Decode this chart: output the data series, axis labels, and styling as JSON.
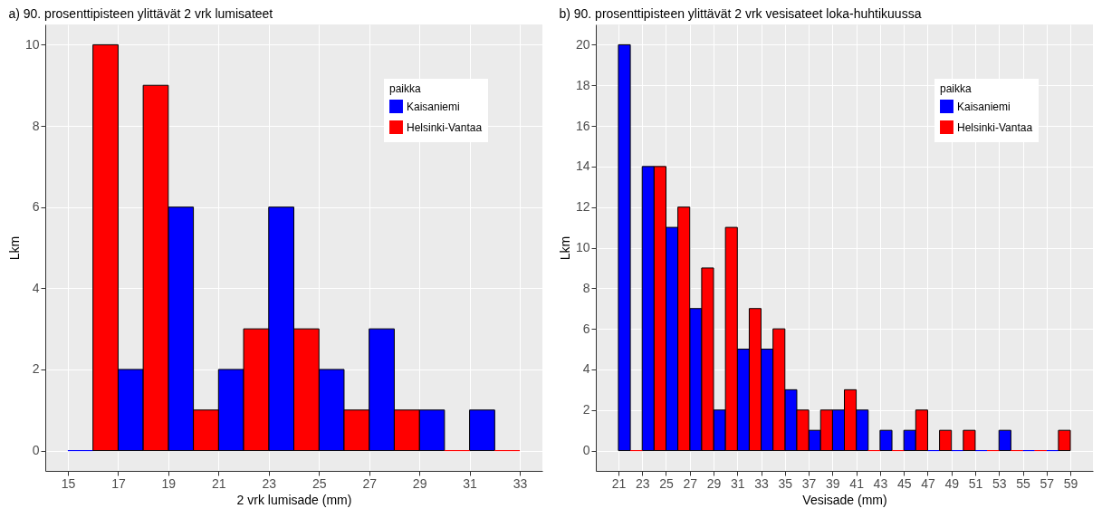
{
  "chart_data": [
    {
      "type": "histogram",
      "title": "a) 90. prosenttipisteen ylittävät 2 vrk lumisateet",
      "xlabel": "2 vrk lumisade (mm)",
      "ylabel": "Lkm",
      "legend_title": "paikka",
      "bins": [
        15,
        17,
        19,
        21,
        23,
        25,
        27,
        29,
        31,
        33
      ],
      "series": [
        {
          "name": "Kaisaniemi",
          "color": "#0000ff",
          "values": [
            0,
            2,
            6,
            2,
            6,
            2,
            3,
            1,
            1
          ]
        },
        {
          "name": "Helsinki-Vantaa",
          "color": "#ff0000",
          "values": [
            10,
            9,
            1,
            3,
            3,
            1,
            1,
            0,
            0
          ]
        }
      ],
      "xlim": [
        14.1,
        33.9
      ],
      "xticks": [
        15,
        17,
        19,
        21,
        23,
        25,
        27,
        29,
        31,
        33
      ],
      "ylim": [
        -0.5,
        10.5
      ],
      "yticks": [
        0,
        2,
        4,
        6,
        8,
        10
      ],
      "grid": true,
      "legend": "top right"
    },
    {
      "type": "histogram",
      "title": "b) 90. prosenttipisteen ylittävät 2 vrk vesisateet loka-huhtikuussa",
      "xlabel": "Vesisade (mm)",
      "ylabel": "Lkm",
      "legend_title": "paikka",
      "bins": [
        21,
        23,
        25,
        27,
        29,
        31,
        33,
        35,
        37,
        39,
        41,
        43,
        45,
        47,
        49,
        51,
        53,
        55,
        57,
        59
      ],
      "series": [
        {
          "name": "Kaisaniemi",
          "color": "#0000ff",
          "values": [
            20,
            14,
            11,
            7,
            2,
            5,
            5,
            3,
            1,
            2,
            2,
            1,
            1,
            0,
            0,
            0,
            1,
            0,
            0
          ]
        },
        {
          "name": "Helsinki-Vantaa",
          "color": "#ff0000",
          "values": [
            0,
            14,
            12,
            9,
            11,
            7,
            6,
            2,
            2,
            3,
            0,
            0,
            2,
            1,
            1,
            0,
            0,
            0,
            1
          ]
        }
      ],
      "xlim": [
        19.1,
        60.9
      ],
      "xticks": [
        21,
        23,
        25,
        27,
        29,
        31,
        33,
        35,
        37,
        39,
        41,
        43,
        45,
        47,
        49,
        51,
        53,
        55,
        57,
        59
      ],
      "ylim": [
        -1,
        21
      ],
      "yticks": [
        0,
        2,
        4,
        6,
        8,
        10,
        12,
        14,
        16,
        18,
        20
      ],
      "grid": true,
      "legend": "top right"
    }
  ]
}
